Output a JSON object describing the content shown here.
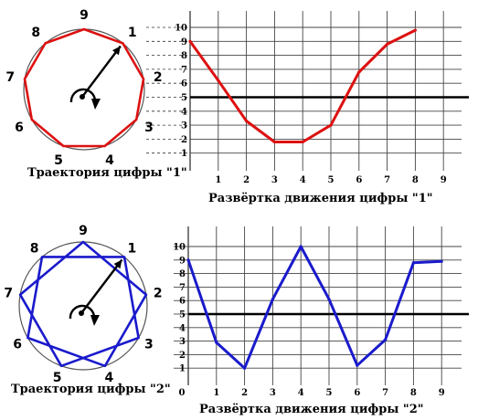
{
  "panels": [
    {
      "id": "top",
      "trajectory_caption": "Траектория цифры \"1\"",
      "sweep_caption": "Развёртка движения цифры \"1\"",
      "dial_labels": [
        "1",
        "2",
        "3",
        "4",
        "5",
        "6",
        "7",
        "8",
        "9"
      ],
      "color": "#dd1111",
      "y_ticks": [
        "1",
        "2",
        "3",
        "4",
        "5",
        "6",
        "7",
        "8",
        "9",
        "10"
      ],
      "x_ticks": [
        "1",
        "2",
        "3",
        "4",
        "5",
        "6",
        "7",
        "8",
        "9"
      ],
      "x_zero_label": "",
      "polygon_order": [
        1,
        2,
        3,
        4,
        5,
        6,
        7,
        8,
        9
      ]
    },
    {
      "id": "bottom",
      "trajectory_caption": "Траектория цифры \"2\"",
      "sweep_caption": "Развёртка движения цифры \"2\"",
      "dial_labels": [
        "1",
        "2",
        "3",
        "4",
        "5",
        "6",
        "7",
        "8",
        "9"
      ],
      "color": "#1a1acc",
      "y_ticks": [
        "1",
        "2",
        "3",
        "4",
        "5",
        "6",
        "7",
        "8",
        "9",
        "10"
      ],
      "x_ticks": [
        "1",
        "2",
        "3",
        "4",
        "5",
        "6",
        "7",
        "8",
        "9"
      ],
      "x_zero_label": "0",
      "polygon_order": [
        9,
        2,
        4,
        6,
        8,
        1,
        3,
        5,
        7
      ]
    }
  ],
  "chart_data": [
    {
      "type": "line",
      "x": [
        0,
        1,
        2,
        3,
        4,
        5,
        6,
        7,
        8
      ],
      "series": [
        {
          "values": [
            9,
            6.2,
            3.3,
            1.8,
            1.8,
            3,
            6.8,
            8.8,
            9.8
          ]
        }
      ],
      "xlabel": "Развёртка движения цифры \"1\"",
      "ylim": [
        0,
        10.5
      ],
      "xlim": [
        0,
        9.5
      ],
      "reference_line": 5,
      "grid": true
    },
    {
      "type": "line",
      "x": [
        0,
        1,
        2,
        3,
        4,
        5,
        6,
        7,
        8,
        9
      ],
      "series": [
        {
          "values": [
            9,
            2.9,
            1,
            6.1,
            10,
            6.1,
            1.2,
            3.1,
            8.8,
            8.9
          ]
        }
      ],
      "xlabel": "Развёртка движения цифры \"2\"",
      "ylim": [
        0,
        10.5
      ],
      "xlim": [
        0,
        9.5
      ],
      "reference_line": 5,
      "grid": true
    }
  ]
}
